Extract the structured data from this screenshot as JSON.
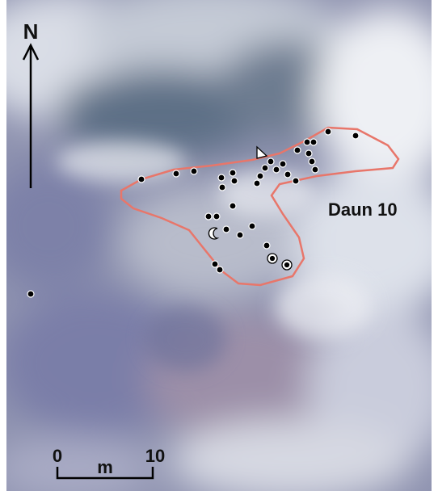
{
  "north_label": "N",
  "site_label": "Daun 10",
  "scale_bar": {
    "start": "0",
    "unit": "m",
    "end": "10"
  }
}
